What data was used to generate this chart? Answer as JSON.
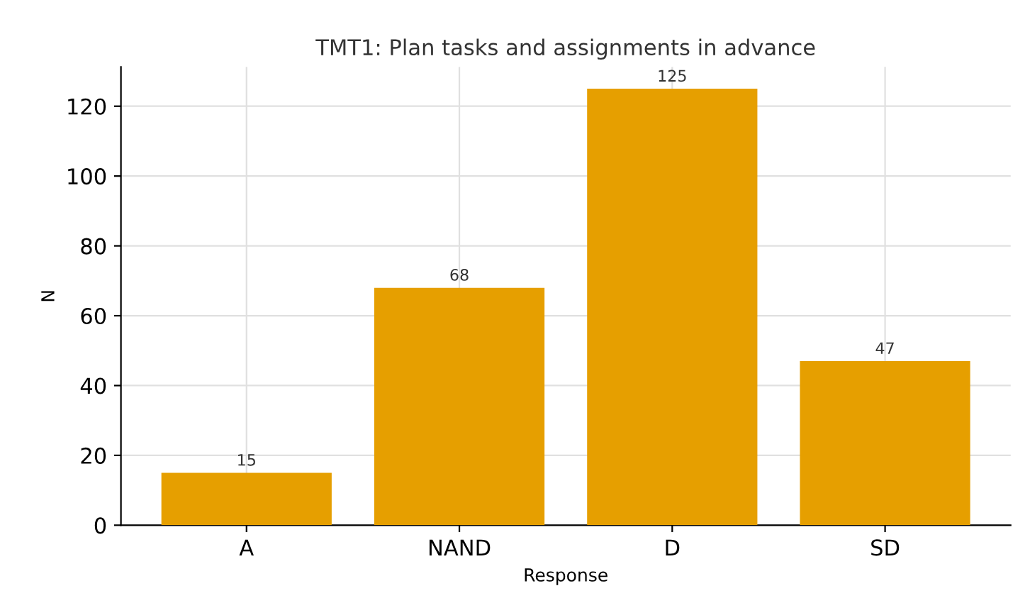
{
  "chart_data": {
    "type": "bar",
    "title": "TMT1: Plan tasks and assignments in advance",
    "xlabel": "Response",
    "ylabel": "N",
    "categories": [
      "A",
      "NAND",
      "D",
      "SD"
    ],
    "values": [
      15,
      68,
      125,
      47
    ],
    "color": "#e69f00",
    "ylim": [
      0,
      131.25
    ],
    "yticks": [
      0,
      20,
      40,
      60,
      80,
      100,
      120
    ],
    "grid": true,
    "data_labels": true
  }
}
